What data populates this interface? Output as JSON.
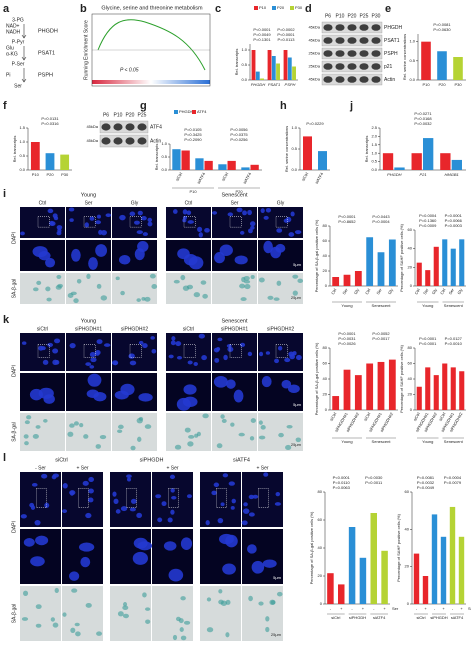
{
  "figure": {
    "letters": [
      "a",
      "b",
      "c",
      "d",
      "e",
      "f",
      "g",
      "h",
      "j",
      "i",
      "k",
      "l"
    ],
    "pathway": {
      "metabolites": [
        "3-PG",
        "P-Pyr",
        "P-Ser",
        "Ser"
      ],
      "cofactors": [
        "NAD+",
        "NADH",
        "Glu",
        "α-KG",
        "Pi"
      ],
      "enzymes": [
        "PHGDH",
        "PSAT1",
        "PSPH"
      ]
    },
    "gsea": {
      "title": "Glycine, serine and threonine metabolism",
      "ylabel": "Running Enrichment Score",
      "pvalue": "P < 0.05"
    },
    "blot_d": {
      "lanes": [
        "P6",
        "P10",
        "P20",
        "P25",
        "P30"
      ],
      "proteins": [
        "PHGDH",
        "PSAT1",
        "PSPH",
        "p21",
        "Actin"
      ],
      "markers": [
        "45kDa",
        "45kDa",
        "25kDa",
        "25kDa",
        "45kDa"
      ]
    },
    "blot_f": {
      "lanes": [
        "P6",
        "P10",
        "P20",
        "P25"
      ],
      "proteins": [
        "ATF4",
        "Actin"
      ],
      "markers": [
        "45kDa",
        "45kDa"
      ]
    },
    "image_i": {
      "groups": [
        "Young",
        "Senescent"
      ],
      "columns": [
        "Ctrl",
        "Ser",
        "Gly",
        "Ctrl",
        "Ser",
        "Gly"
      ],
      "rows": [
        "DAPI",
        "SA-β-gal"
      ],
      "scales": [
        "5μm",
        "25μm"
      ]
    },
    "image_k": {
      "groups": [
        "Young",
        "Senescent"
      ],
      "columns": [
        "siCtrl",
        "siPHGDH#1",
        "siPHGDH#2",
        "siCtrl",
        "siPHGDH#1",
        "siPHGDH#2"
      ],
      "rows": [
        "DAPI",
        "SA-β-gal"
      ],
      "scales": [
        "5μm",
        "25μm"
      ]
    },
    "image_l": {
      "groups": [
        "siCtrl",
        "siPHGDH",
        "siATF4"
      ],
      "columns": [
        "- Ser",
        "+ Ser",
        "+ Ser",
        "+ Ser"
      ],
      "rows": [
        "DAPI",
        "SA-β-gal"
      ],
      "scales": [
        "5μm",
        "25μm"
      ]
    }
  },
  "chart_data": [
    {
      "type": "bar",
      "ylabel": "Rel. transcripts",
      "categories": [
        "PHGDH",
        "PSAT1",
        "PSPH"
      ],
      "series": [
        {
          "name": "P10",
          "color": "#e8262b",
          "values": [
            1.0,
            1.0,
            1.0
          ]
        },
        {
          "name": "P20",
          "color": "#2a8fd6",
          "values": [
            0.28,
            0.8,
            0.75
          ]
        },
        {
          "name": "P30",
          "color": "#b5d334",
          "values": [
            0.05,
            0.55,
            0.45
          ]
        }
      ],
      "ylim": [
        0,
        1.2
      ],
      "yticks": [
        {
          "value": 0,
          "label": "0.0"
        },
        {
          "value": 0.5,
          "label": "0.5"
        },
        {
          "value": 1,
          "label": "1.0"
        }
      ],
      "annotations": [
        "P<0.0001",
        "P=0.0002",
        "P=0.0049",
        "P<0.0001",
        "P=0.1301",
        "P=0.0113"
      ]
    },
    {
      "type": "bar",
      "ylabel": "Rel. serine concentrations",
      "categories": [
        "P10",
        "P20",
        "P30"
      ],
      "values": [
        1.0,
        0.75,
        0.6
      ],
      "colors": [
        "#e8262b",
        "#2a8fd6",
        "#b5d334"
      ],
      "ylim": [
        0,
        1.2
      ],
      "yticks": [
        {
          "value": 0,
          "label": "0.0"
        },
        {
          "value": 0.5,
          "label": "0.5"
        },
        {
          "value": 1,
          "label": "1.0"
        }
      ],
      "annotations": [
        "P=0.0081",
        "P=0.0630"
      ]
    },
    {
      "type": "bar",
      "ylabel": "Rel. transcripts",
      "categories": [
        "P10",
        "P20",
        "P30"
      ],
      "values": [
        1.0,
        0.6,
        0.55
      ],
      "colors": [
        "#e8262b",
        "#2a8fd6",
        "#b5d334"
      ],
      "ylim": [
        0,
        1.5
      ],
      "yticks": [
        {
          "value": 0,
          "label": "0.0"
        },
        {
          "value": 0.5,
          "label": "0.5"
        },
        {
          "value": 1,
          "label": "1.0"
        },
        {
          "value": 1.5,
          "label": "1.5"
        }
      ],
      "annotations": [
        "P=0.0131",
        "P=0.0316"
      ]
    },
    {
      "type": "bar",
      "ylabel": "Rel. transcripts",
      "categories": [
        "siCtrl",
        "siATF4",
        "siCtrl",
        "siATF4"
      ],
      "groups": [
        "P10",
        "P20"
      ],
      "series": [
        {
          "name": "PHGDH",
          "color": "#2a8fd6",
          "values": [
            0.8,
            0.45,
            0.22,
            0.1
          ]
        },
        {
          "name": "ATF4",
          "color": "#e8262b",
          "values": [
            0.75,
            0.35,
            0.35,
            0.2
          ]
        }
      ],
      "ylim": [
        0,
        1.0
      ],
      "yticks": [
        {
          "value": 0,
          "label": "0.0"
        },
        {
          "value": 0.5,
          "label": "0.5"
        },
        {
          "value": 1,
          "label": "1.0"
        }
      ],
      "annotations": [
        "P=0.0105",
        "P=0.0056",
        "P=0.3425",
        "P=0.0375",
        "P=0.2090",
        "P=0.0256"
      ]
    },
    {
      "type": "bar",
      "ylabel": "Rel. serine concentrations",
      "categories": [
        "siCtrl",
        "siATF4"
      ],
      "values": [
        0.8,
        0.45
      ],
      "colors": [
        "#e8262b",
        "#2a8fd6"
      ],
      "ylim": [
        0,
        1.0
      ],
      "yticks": [
        {
          "value": 0,
          "label": "0.0"
        },
        {
          "value": 0.5,
          "label": "0.5"
        },
        {
          "value": 1,
          "label": "1.0"
        }
      ],
      "annotations": [
        "P=0.0229"
      ]
    },
    {
      "type": "bar",
      "ylabel": "Rel. transcripts",
      "categories": [
        "PHGDH",
        "P21",
        "HMGB1"
      ],
      "series": [
        {
          "color": "#e8262b",
          "values": [
            1.0,
            1.0,
            1.0
          ]
        },
        {
          "color": "#2a8fd6",
          "values": [
            0.15,
            1.9,
            0.6
          ]
        }
      ],
      "ylim": [
        0,
        2.5
      ],
      "yticks": [
        {
          "value": 0,
          "label": "0.0"
        },
        {
          "value": 0.5,
          "label": "0.5"
        },
        {
          "value": 1,
          "label": "1.0"
        },
        {
          "value": 1.5,
          "label": "1.5"
        },
        {
          "value": 2,
          "label": "2.0"
        },
        {
          "value": 2.5,
          "label": "2.5"
        }
      ],
      "annotations": [
        "P=0.0271",
        "P=0.0168",
        "P=0.0032"
      ]
    },
    {
      "type": "bar",
      "ylabel": "Percentage of SA-β-gal positive cells (%)",
      "categories": [
        "Ctrl",
        "Ser",
        "Gly",
        "Ctrl",
        "Ser",
        "Gly"
      ],
      "groups": [
        "Young",
        "Senescent"
      ],
      "values": [
        12,
        15,
        20,
        65,
        45,
        62
      ],
      "colors": [
        "#e8262b",
        "#e8262b",
        "#e8262b",
        "#2a8fd6",
        "#2a8fd6",
        "#2a8fd6"
      ],
      "ylim": [
        0,
        80
      ],
      "yticks": [
        0,
        20,
        40,
        60,
        80
      ],
      "annotations": [
        "P<0.0001",
        "P=0.0443",
        "P=0.8652",
        "P=0.0004"
      ]
    },
    {
      "type": "bar",
      "ylabel": "Percentage of SAHF positive cells (%)",
      "categories": [
        "Ctrl",
        "Ser",
        "Gly",
        "Ctrl",
        "Ser",
        "Gly"
      ],
      "groups": [
        "Young",
        "Senescent"
      ],
      "values": [
        25,
        17,
        42,
        50,
        40,
        50
      ],
      "colors": [
        "#e8262b",
        "#e8262b",
        "#e8262b",
        "#2a8fd6",
        "#2a8fd6",
        "#2a8fd6"
      ],
      "ylim": [
        0,
        60
      ],
      "yticks": [
        0,
        20,
        40,
        60
      ],
      "annotations": [
        "P=0.0004",
        "P=0.0001",
        "P=0.1360",
        "P=0.0066",
        "P=0.0009",
        "P=0.0003"
      ]
    },
    {
      "type": "bar",
      "ylabel": "Percentage of SA-β-gal positive cells (%)",
      "categories": [
        "siCtrl",
        "siPHGDH#1",
        "siPHGDH#2",
        "siCtrl",
        "siPHGDH#1",
        "siPHGDH#2"
      ],
      "groups": [
        "Young",
        "Senescent"
      ],
      "values": [
        18,
        52,
        45,
        60,
        62,
        65
      ],
      "colors": [
        "#e8262b",
        "#e8262b",
        "#e8262b",
        "#e8262b",
        "#e8262b",
        "#e8262b"
      ],
      "ylim": [
        0,
        80
      ],
      "yticks": [
        0,
        20,
        40,
        60,
        80
      ],
      "annotations": [
        "P<0.0001",
        "P=0.0052",
        "P=0.0031",
        "P=0.0017",
        "P=0.0026"
      ]
    },
    {
      "type": "bar",
      "ylabel": "Percentage of SAHF positive cells (%)",
      "categories": [
        "siCtrl",
        "siPHGDH#1",
        "siPHGDH#2",
        "siCtrl",
        "siPHGDH#1",
        "siPHGDH#2"
      ],
      "groups": [
        "Young",
        "Senescent"
      ],
      "values": [
        30,
        55,
        45,
        60,
        55,
        50
      ],
      "colors": [
        "#e8262b",
        "#e8262b",
        "#e8262b",
        "#e8262b",
        "#e8262b",
        "#e8262b"
      ],
      "ylim": [
        0,
        80
      ],
      "yticks": [
        0,
        20,
        40,
        60,
        80
      ],
      "annotations": [
        "P=0.0001",
        "P=0.0127",
        "P=0.0001",
        "P=0.0010"
      ]
    },
    {
      "type": "bar",
      "ylabel": "Percentage of SA-β-gal positive cells (%)",
      "xlabel": "Ser",
      "categories": [
        "-",
        "+",
        "-",
        "+",
        "-",
        "+"
      ],
      "groups": [
        "siCtrl",
        "siPHGDH",
        "siATF4"
      ],
      "values": [
        22,
        14,
        55,
        33,
        65,
        38
      ],
      "colors": [
        "#e8262b",
        "#e8262b",
        "#2a8fd6",
        "#2a8fd6",
        "#b5d334",
        "#b5d334"
      ],
      "ylim": [
        0,
        80
      ],
      "yticks": [
        0,
        20,
        40,
        60,
        80
      ],
      "annotations": [
        "P<0.0001",
        "P=0.0030",
        "P=0.0110",
        "P=0.0011",
        "P=0.0063"
      ]
    },
    {
      "type": "bar",
      "ylabel": "Percentage of SAHF positive cells (%)",
      "xlabel": "Ser",
      "categories": [
        "-",
        "+",
        "-",
        "+",
        "-",
        "+"
      ],
      "groups": [
        "siCtrl",
        "siPHGDH",
        "siATF4"
      ],
      "values": [
        27,
        15,
        48,
        36,
        52,
        36
      ],
      "colors": [
        "#e8262b",
        "#e8262b",
        "#2a8fd6",
        "#2a8fd6",
        "#b5d334",
        "#b5d334"
      ],
      "ylim": [
        0,
        60
      ],
      "yticks": [
        0,
        20,
        40,
        60
      ],
      "annotations": [
        "P=0.0081",
        "P=0.0004",
        "P=0.0032",
        "P=0.0079",
        "P=0.0049"
      ]
    }
  ]
}
